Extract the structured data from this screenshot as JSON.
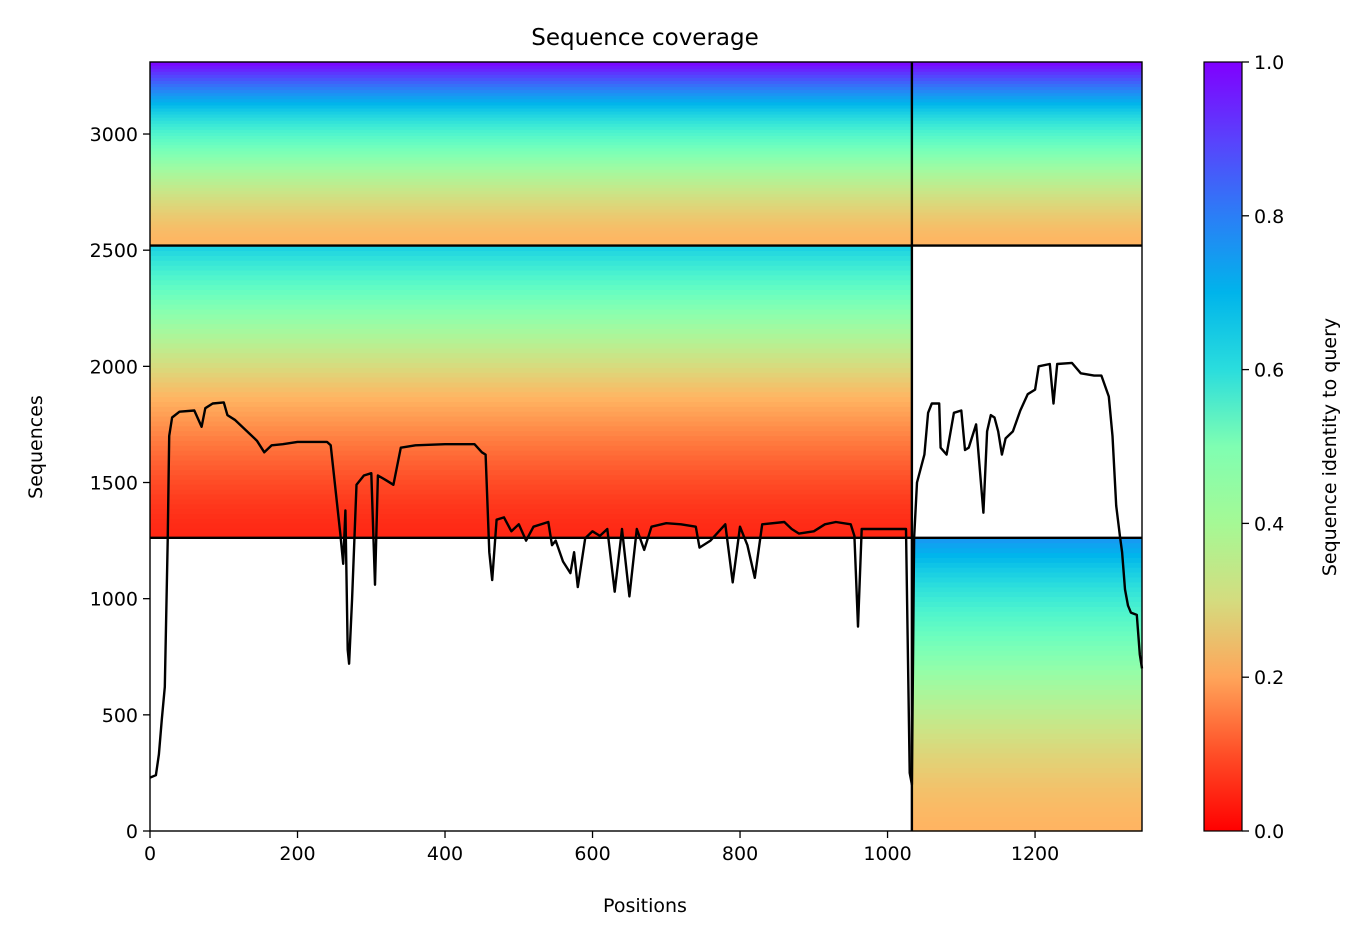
{
  "chart_data": {
    "type": "heatmap",
    "title": "Sequence coverage",
    "xlabel": "Positions",
    "ylabel": "Sequences",
    "xlim": [
      0,
      1345
    ],
    "ylim": [
      0,
      3310
    ],
    "xticks": [
      0,
      200,
      400,
      600,
      800,
      1000,
      1200
    ],
    "yticks": [
      0,
      500,
      1000,
      1500,
      2000,
      2500,
      3000
    ],
    "colorbar": {
      "label": "Sequence identity to query",
      "colormap": "rainbow",
      "range": [
        0,
        1
      ],
      "ticks": [
        "0.0",
        "0.2",
        "0.4",
        "0.6",
        "0.8",
        "1.0"
      ]
    },
    "chain_boundary_x": 1033,
    "group_boundaries_y": [
      1262,
      2520
    ],
    "coverage_blocks": [
      {
        "x": [
          0,
          1033
        ],
        "y_range": [
          2520,
          3310
        ],
        "identity_top": 1.0,
        "identity_bottom": 0.25
      },
      {
        "x": [
          0,
          1033
        ],
        "y_range": [
          1262,
          2520
        ],
        "identity_top": 0.7,
        "identity_bottom": 0.05
      },
      {
        "x": [
          1033,
          1345
        ],
        "y_range": [
          2520,
          3310
        ],
        "identity_top": 1.0,
        "identity_bottom": 0.25
      },
      {
        "x": [
          1033,
          1345
        ],
        "y_range": [
          0,
          1262
        ],
        "identity_top": 0.8,
        "identity_bottom": 0.25
      }
    ],
    "coverage_line": [
      [
        0,
        230
      ],
      [
        8,
        240
      ],
      [
        12,
        330
      ],
      [
        16,
        480
      ],
      [
        20,
        620
      ],
      [
        24,
        1250
      ],
      [
        26,
        1700
      ],
      [
        30,
        1780
      ],
      [
        40,
        1805
      ],
      [
        60,
        1810
      ],
      [
        70,
        1740
      ],
      [
        75,
        1820
      ],
      [
        85,
        1840
      ],
      [
        100,
        1845
      ],
      [
        105,
        1790
      ],
      [
        115,
        1770
      ],
      [
        130,
        1725
      ],
      [
        145,
        1680
      ],
      [
        155,
        1630
      ],
      [
        165,
        1660
      ],
      [
        180,
        1665
      ],
      [
        200,
        1675
      ],
      [
        240,
        1675
      ],
      [
        245,
        1660
      ],
      [
        258,
        1280
      ],
      [
        262,
        1150
      ],
      [
        265,
        1380
      ],
      [
        268,
        780
      ],
      [
        270,
        720
      ],
      [
        274,
        1000
      ],
      [
        280,
        1490
      ],
      [
        290,
        1530
      ],
      [
        300,
        1540
      ],
      [
        305,
        1060
      ],
      [
        309,
        1530
      ],
      [
        320,
        1510
      ],
      [
        330,
        1490
      ],
      [
        340,
        1650
      ],
      [
        360,
        1660
      ],
      [
        400,
        1665
      ],
      [
        440,
        1665
      ],
      [
        450,
        1630
      ],
      [
        455,
        1620
      ],
      [
        460,
        1200
      ],
      [
        464,
        1080
      ],
      [
        470,
        1340
      ],
      [
        480,
        1350
      ],
      [
        490,
        1290
      ],
      [
        500,
        1320
      ],
      [
        510,
        1250
      ],
      [
        520,
        1310
      ],
      [
        540,
        1330
      ],
      [
        545,
        1230
      ],
      [
        550,
        1250
      ],
      [
        560,
        1160
      ],
      [
        570,
        1110
      ],
      [
        575,
        1200
      ],
      [
        580,
        1050
      ],
      [
        590,
        1260
      ],
      [
        600,
        1290
      ],
      [
        610,
        1270
      ],
      [
        620,
        1300
      ],
      [
        630,
        1030
      ],
      [
        640,
        1300
      ],
      [
        650,
        1010
      ],
      [
        660,
        1300
      ],
      [
        670,
        1210
      ],
      [
        680,
        1310
      ],
      [
        700,
        1325
      ],
      [
        720,
        1320
      ],
      [
        740,
        1310
      ],
      [
        745,
        1220
      ],
      [
        760,
        1250
      ],
      [
        780,
        1320
      ],
      [
        790,
        1070
      ],
      [
        800,
        1310
      ],
      [
        810,
        1230
      ],
      [
        820,
        1090
      ],
      [
        830,
        1320
      ],
      [
        860,
        1330
      ],
      [
        870,
        1300
      ],
      [
        880,
        1280
      ],
      [
        900,
        1290
      ],
      [
        915,
        1320
      ],
      [
        930,
        1330
      ],
      [
        950,
        1320
      ],
      [
        955,
        1270
      ],
      [
        960,
        880
      ],
      [
        965,
        1300
      ],
      [
        1000,
        1300
      ],
      [
        1025,
        1300
      ],
      [
        1030,
        250
      ],
      [
        1033,
        200
      ],
      [
        1036,
        1260
      ],
      [
        1040,
        1500
      ],
      [
        1050,
        1620
      ],
      [
        1055,
        1800
      ],
      [
        1060,
        1840
      ],
      [
        1070,
        1840
      ],
      [
        1072,
        1650
      ],
      [
        1080,
        1620
      ],
      [
        1090,
        1800
      ],
      [
        1100,
        1810
      ],
      [
        1105,
        1640
      ],
      [
        1110,
        1650
      ],
      [
        1120,
        1750
      ],
      [
        1130,
        1370
      ],
      [
        1135,
        1720
      ],
      [
        1140,
        1790
      ],
      [
        1145,
        1780
      ],
      [
        1150,
        1720
      ],
      [
        1155,
        1620
      ],
      [
        1160,
        1690
      ],
      [
        1170,
        1720
      ],
      [
        1180,
        1810
      ],
      [
        1190,
        1880
      ],
      [
        1200,
        1900
      ],
      [
        1205,
        2000
      ],
      [
        1220,
        2010
      ],
      [
        1225,
        1840
      ],
      [
        1230,
        2010
      ],
      [
        1250,
        2015
      ],
      [
        1262,
        1970
      ],
      [
        1280,
        1960
      ],
      [
        1290,
        1960
      ],
      [
        1300,
        1870
      ],
      [
        1305,
        1700
      ],
      [
        1310,
        1400
      ],
      [
        1315,
        1270
      ],
      [
        1318,
        1200
      ],
      [
        1322,
        1040
      ],
      [
        1326,
        970
      ],
      [
        1330,
        940
      ],
      [
        1338,
        930
      ],
      [
        1342,
        760
      ],
      [
        1345,
        700
      ]
    ]
  }
}
